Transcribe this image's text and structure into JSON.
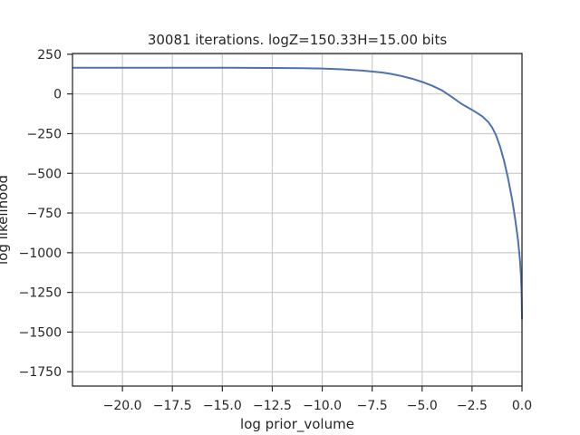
{
  "chart_data": {
    "type": "line",
    "title": "30081 iterations. logZ=150.33H=15.00 bits",
    "xlabel": "log prior_volume",
    "ylabel": "log likelihood",
    "xlim": [
      -22.5,
      0.0
    ],
    "ylim": [
      -1840,
      255
    ],
    "grid": true,
    "xticks": [
      -20.0,
      -17.5,
      -15.0,
      -12.5,
      -10.0,
      -7.5,
      -5.0,
      -2.5,
      0.0
    ],
    "xtick_labels": [
      "−20.0",
      "−17.5",
      "−15.0",
      "−12.5",
      "−10.0",
      "−7.5",
      "−5.0",
      "−2.5",
      "0.0"
    ],
    "yticks": [
      250,
      0,
      -250,
      -500,
      -750,
      -1000,
      -1250,
      -1500,
      -1750
    ],
    "ytick_labels": [
      "250",
      "0",
      "−250",
      "−500",
      "−750",
      "−1000",
      "−1250",
      "−1500",
      "−1750"
    ],
    "line_color": "#4c72b0",
    "series": [
      {
        "x": [
          -22.5,
          -20.0,
          -17.5,
          -15.0,
          -12.5,
          -11.0,
          -10.0,
          -9.0,
          -8.0,
          -7.0,
          -6.5,
          -6.0,
          -5.5,
          -5.0,
          -4.5,
          -4.0,
          -3.5,
          -3.0,
          -2.5,
          -2.0,
          -1.7,
          -1.5,
          -1.3,
          -1.1,
          -0.9,
          -0.7,
          -0.5,
          -0.35,
          -0.2,
          -0.1,
          -0.05,
          -0.02,
          0.0
        ],
        "y": [
          165,
          165,
          165,
          165,
          164,
          162,
          160,
          155,
          147,
          135,
          125,
          112,
          96,
          76,
          52,
          22,
          -20,
          -65,
          -100,
          -140,
          -175,
          -210,
          -260,
          -330,
          -420,
          -530,
          -660,
          -780,
          -920,
          -1050,
          -1150,
          -1250,
          -1420
        ]
      }
    ]
  }
}
